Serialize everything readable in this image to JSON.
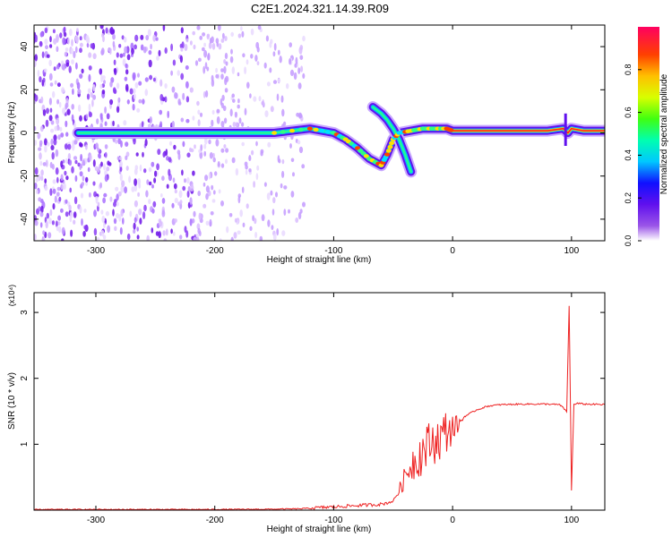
{
  "title": "C2E1.2024.321.14.39.R09",
  "chart_data": [
    {
      "type": "heatmap",
      "title": "C2E1.2024.321.14.39.R09",
      "xlabel": "Height of straight line (km)",
      "ylabel": "Frequency (Hz)",
      "xlim": [
        -352,
        128
      ],
      "ylim": [
        -50,
        50
      ],
      "xticks": [
        -300,
        -200,
        -100,
        0,
        100
      ],
      "yticks": [
        -40,
        -20,
        0,
        20,
        40
      ],
      "colorbar": {
        "label": "Normalized spectral amplitude",
        "range": [
          0,
          1
        ],
        "ticks": [
          0.0,
          0.2,
          0.4,
          0.6,
          0.8
        ],
        "tick_labels": [
          "0.0",
          "0.2",
          "0.4",
          "0.6",
          "0.8"
        ]
      },
      "ridge": {
        "x": [
          -315,
          -250,
          -200,
          -150,
          -120,
          -100,
          -90,
          -80,
          -70,
          -60,
          -55,
          -50,
          -45,
          -35,
          -25,
          -15,
          -5,
          0,
          20,
          50,
          80,
          93,
          97,
          100,
          110,
          128
        ],
        "freq": [
          0,
          0,
          0,
          0,
          2,
          0,
          -3,
          -7,
          -12,
          -15,
          -10,
          -3,
          0,
          1,
          2,
          2,
          2,
          1,
          1,
          1,
          1,
          2,
          0,
          2,
          1,
          1
        ]
      },
      "branch": {
        "x": [
          -67,
          -60,
          -55,
          -50,
          -45,
          -40,
          -35
        ],
        "freq": [
          12,
          9,
          6,
          2,
          -3,
          -10,
          -18
        ]
      },
      "grid": false
    },
    {
      "type": "line",
      "xlabel": "Height of straight line (km)",
      "ylabel": "SNR (10 * v/v)",
      "multiplier_label": "(x10⁴)",
      "xlim": [
        -352,
        128
      ],
      "ylim": [
        0,
        3.3
      ],
      "xticks": [
        -300,
        -200,
        -100,
        0,
        100
      ],
      "yticks": [
        1,
        2,
        3
      ],
      "series": [
        {
          "color": "#ee2222",
          "x": [
            -352,
            -300,
            -200,
            -150,
            -130,
            -110,
            -100,
            -90,
            -80,
            -70,
            -60,
            -55,
            -50,
            -45,
            -40,
            -35,
            -30,
            -25,
            -20,
            -15,
            -10,
            -5,
            0,
            5,
            10,
            20,
            30,
            40,
            60,
            80,
            90,
            96,
            98,
            100,
            102,
            105,
            110,
            128
          ],
          "y": [
            0.01,
            0.01,
            0.01,
            0.015,
            0.02,
            0.04,
            0.05,
            0.06,
            0.07,
            0.08,
            0.09,
            0.11,
            0.14,
            0.3,
            0.5,
            0.7,
            0.8,
            0.9,
            1.0,
            1.05,
            1.1,
            1.2,
            1.25,
            1.3,
            1.42,
            1.52,
            1.58,
            1.6,
            1.61,
            1.61,
            1.6,
            1.5,
            3.1,
            0.3,
            1.6,
            1.62,
            1.61,
            1.6
          ]
        }
      ],
      "grid": false
    }
  ]
}
